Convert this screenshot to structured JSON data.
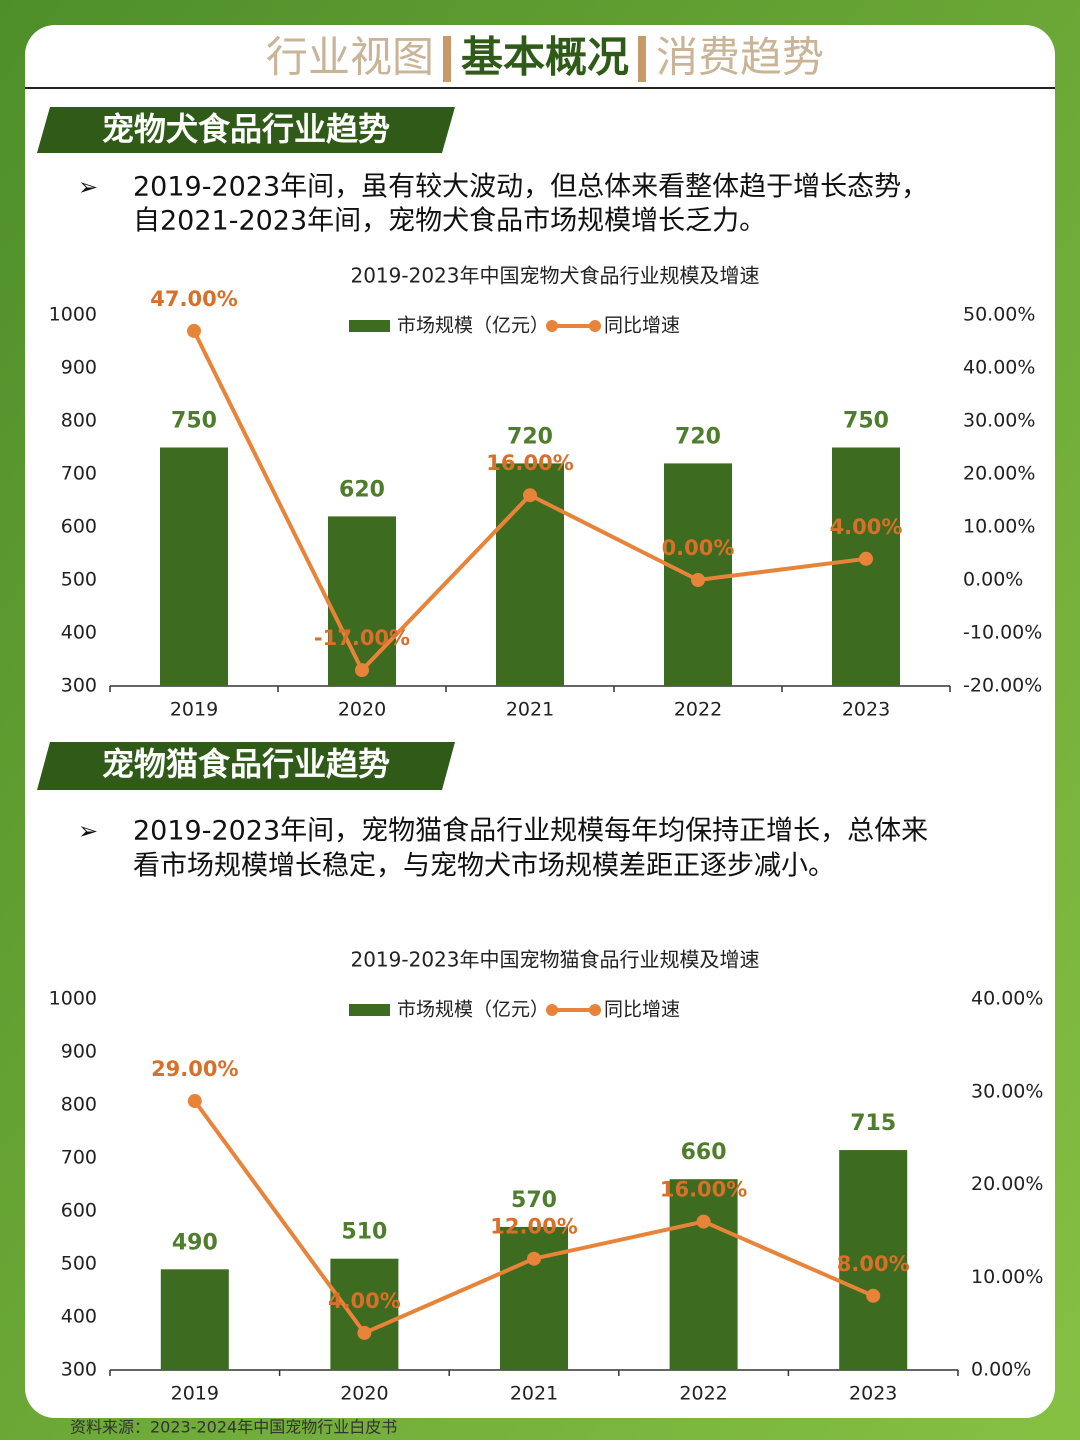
{
  "header": {
    "tabs": [
      "行业视图",
      "基本概况",
      "消费趋势"
    ]
  },
  "sections": [
    {
      "heading": "宠物犬食品行业趋势",
      "bullet": [
        "2019-2023年间，虽有较大波动，但总体来看整体趋于增长态势，",
        "自2021-2023年间，宠物犬食品市场规模增长乏力。"
      ]
    },
    {
      "heading": "宠物猫食品行业趋势",
      "bullet": [
        "2019-2023年间，宠物猫食品行业规模每年均保持正增长，总体来",
        "看市场规模增长稳定，与宠物犬市场规模差距正逐步减小。"
      ]
    }
  ],
  "chart_data": [
    {
      "type": "bar_line",
      "title": "2019-2023年中国宠物犬食品行业规模及增速",
      "categories": [
        "2019",
        "2020",
        "2021",
        "2022",
        "2023"
      ],
      "series": [
        {
          "name": "市场规模（亿元）",
          "type": "bar",
          "color": "#3d6b1f",
          "values": [
            750,
            620,
            720,
            720,
            750
          ]
        },
        {
          "name": "同比增速",
          "type": "line",
          "axis": "y2",
          "color": "#e8843a",
          "values": [
            47,
            -17,
            16,
            0,
            4
          ],
          "value_labels": [
            "47.00%",
            "-17.00%",
            "16.00%",
            "0.00%",
            "4.00%"
          ]
        }
      ],
      "ylim": [
        300,
        1000
      ],
      "yticks": [
        300,
        400,
        500,
        600,
        700,
        800,
        900,
        1000
      ],
      "y2lim": [
        -20,
        50
      ],
      "y2ticks": [
        {
          "value": -20,
          "label": "-20.00%"
        },
        {
          "value": -10,
          "label": "-10.00%"
        },
        {
          "value": 0,
          "label": "0.00%"
        },
        {
          "value": 10,
          "label": "10.00%"
        },
        {
          "value": 20,
          "label": "20.00%"
        },
        {
          "value": 30,
          "label": "30.00%"
        },
        {
          "value": 40,
          "label": "40.00%"
        },
        {
          "value": 50,
          "label": "50.00%"
        }
      ],
      "legend": "top"
    },
    {
      "type": "bar_line",
      "title": "2019-2023年中国宠物猫食品行业规模及增速",
      "categories": [
        "2019",
        "2020",
        "2021",
        "2022",
        "2023"
      ],
      "series": [
        {
          "name": "市场规模（亿元）",
          "type": "bar",
          "color": "#3d6b1f",
          "values": [
            490,
            510,
            570,
            660,
            715
          ]
        },
        {
          "name": "同比增速",
          "type": "line",
          "axis": "y2",
          "color": "#e8843a",
          "values": [
            29,
            4,
            12,
            16,
            8
          ],
          "value_labels": [
            "29.00%",
            "4.00%",
            "12.00%",
            "16.00%",
            "8.00%"
          ]
        }
      ],
      "ylim": [
        300,
        1000
      ],
      "yticks": [
        300,
        400,
        500,
        600,
        700,
        800,
        900,
        1000
      ],
      "y2lim": [
        0,
        40
      ],
      "y2ticks": [
        {
          "value": 0,
          "label": "0.00%"
        },
        {
          "value": 10,
          "label": "10.00%"
        },
        {
          "value": 20,
          "label": "20.00%"
        },
        {
          "value": 30,
          "label": "30.00%"
        },
        {
          "value": 40,
          "label": "40.00%"
        }
      ],
      "legend": "top"
    }
  ],
  "source": "资料来源：2023-2024年中国宠物行业白皮书"
}
